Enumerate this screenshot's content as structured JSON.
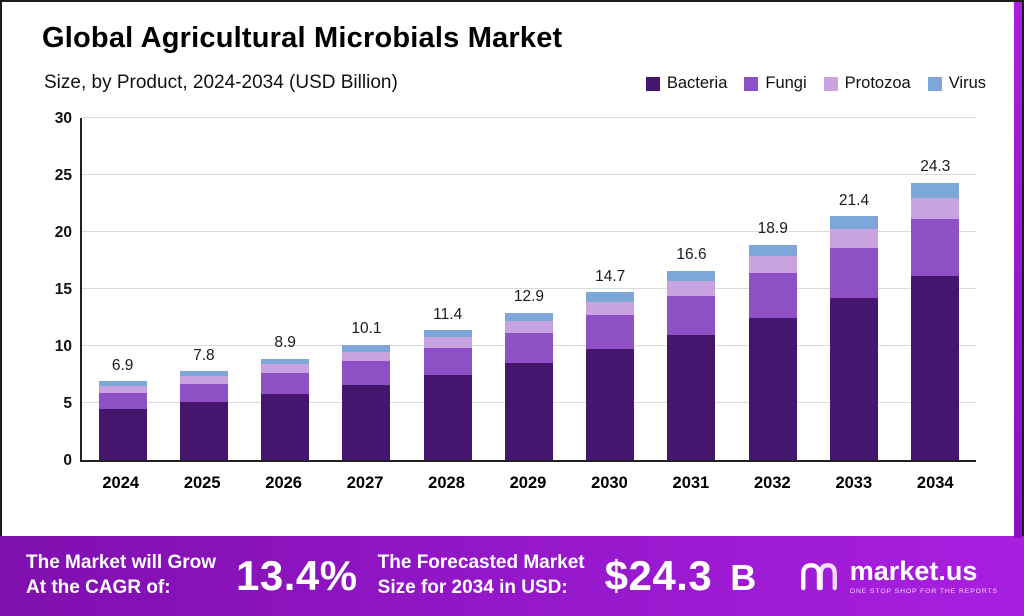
{
  "page": {
    "title": "Global Agricultural Microbials Market",
    "subtitle": "Size, by Product, 2024-2034 (USD Billion)"
  },
  "legend": [
    {
      "label": "Bacteria",
      "color": "#45166e"
    },
    {
      "label": "Fungi",
      "color": "#8f4fc5"
    },
    {
      "label": "Protozoa",
      "color": "#c9a3e0"
    },
    {
      "label": "Virus",
      "color": "#7da7d9"
    }
  ],
  "chart_data": {
    "type": "bar",
    "stacked": true,
    "title": "Global Agricultural Microbials Market",
    "subtitle": "Size, by Product, 2024-2034 (USD Billion)",
    "unit": "USD Billion",
    "categories": [
      "2024",
      "2025",
      "2026",
      "2027",
      "2028",
      "2029",
      "2030",
      "2031",
      "2032",
      "2033",
      "2034"
    ],
    "series": [
      {
        "name": "Bacteria",
        "values": [
          4.5,
          5.1,
          5.8,
          6.6,
          7.5,
          8.5,
          9.7,
          11.0,
          12.5,
          14.2,
          16.1
        ]
      },
      {
        "name": "Fungi",
        "values": [
          1.4,
          1.6,
          1.8,
          2.1,
          2.3,
          2.6,
          3.0,
          3.4,
          3.9,
          4.4,
          5.0
        ]
      },
      {
        "name": "Protozoa",
        "values": [
          0.6,
          0.7,
          0.8,
          0.8,
          1.0,
          1.1,
          1.2,
          1.3,
          1.5,
          1.7,
          1.9
        ]
      },
      {
        "name": "Virus",
        "values": [
          0.4,
          0.4,
          0.5,
          0.6,
          0.6,
          0.7,
          0.8,
          0.9,
          1.0,
          1.1,
          1.3
        ]
      }
    ],
    "totals": [
      6.9,
      7.8,
      8.9,
      10.1,
      11.4,
      12.9,
      14.7,
      16.6,
      18.9,
      21.4,
      24.3
    ],
    "ylim": [
      0,
      30
    ],
    "yticks": [
      0,
      5,
      10,
      15,
      20,
      25,
      30
    ],
    "grid": true,
    "legend_position": "top-right"
  },
  "banner": {
    "cagr_label_line1": "The Market will Grow",
    "cagr_label_line2": "At the CAGR of:",
    "cagr_value": "13.4%",
    "forecast_label_line1": "The Forecasted Market",
    "forecast_label_line2": "Size for 2034 in USD:",
    "forecast_value": "$24.3",
    "forecast_unit": "B",
    "brand": "market.us",
    "brand_tagline": "One Stop Shop For The Reports"
  }
}
